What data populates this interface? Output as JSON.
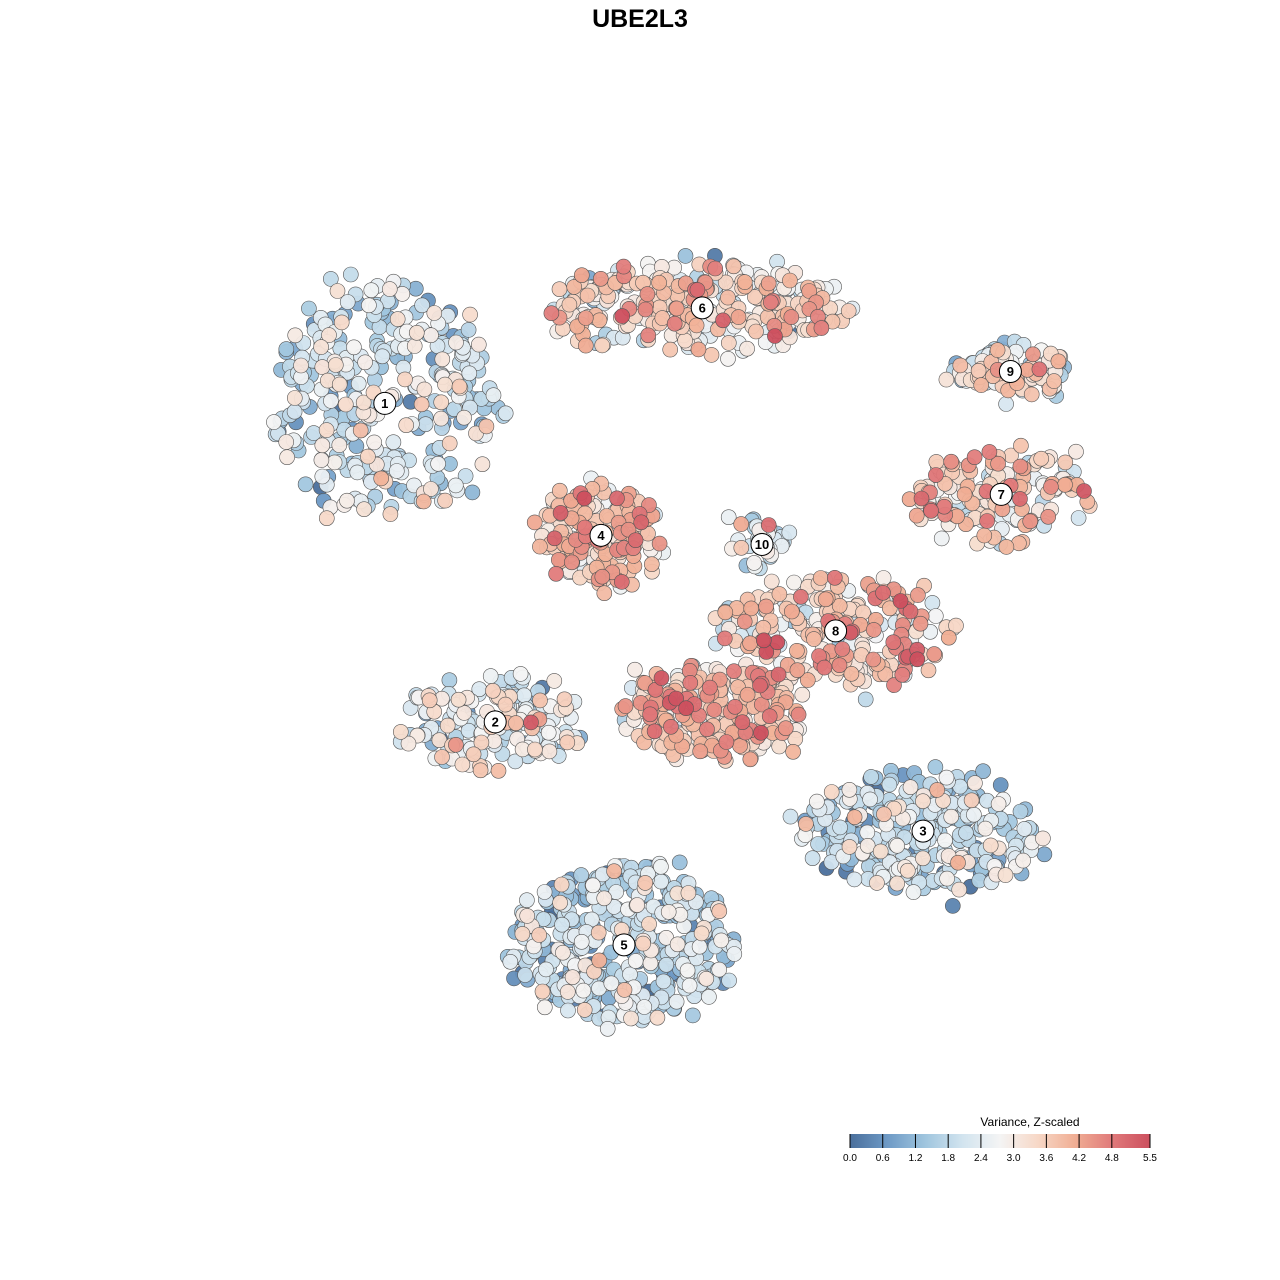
{
  "chart_data": {
    "type": "scatter",
    "title": "UBE2L3",
    "xlabel": "",
    "ylabel": "",
    "grid": false,
    "legend": {
      "title": "Variance, Z-scaled",
      "placement": "bottom-right",
      "range": [
        0.0,
        5.5
      ],
      "ticks": [
        "0.0",
        "0.6",
        "1.2",
        "1.8",
        "2.4",
        "3.0",
        "3.6",
        "4.2",
        "4.8",
        "5.5"
      ],
      "colors": [
        "#4a6f9c",
        "#6e9ac6",
        "#9fc5de",
        "#d2e4ef",
        "#f4f4f4",
        "#f7d8c7",
        "#f0ae94",
        "#e0797a",
        "#cc4f5e"
      ]
    },
    "clusters": [
      {
        "id": "1",
        "label_x": -0.62,
        "label_y": 0.52,
        "spread_x": 0.24,
        "spread_y": 0.26,
        "mean": 2.0,
        "n": 340
      },
      {
        "id": "2",
        "label_x": -0.38,
        "label_y": -0.18,
        "spread_x": 0.19,
        "spread_y": 0.1,
        "mean": 2.4,
        "n": 170
      },
      {
        "id": "3",
        "label_x": 0.55,
        "label_y": -0.42,
        "spread_x": 0.26,
        "spread_y": 0.13,
        "mean": 1.9,
        "n": 300
      },
      {
        "id": "4",
        "label_x": -0.15,
        "label_y": 0.23,
        "spread_x": 0.12,
        "spread_y": 0.11,
        "mean": 3.6,
        "n": 200
      },
      {
        "id": "5",
        "label_x": -0.1,
        "label_y": -0.67,
        "spread_x": 0.24,
        "spread_y": 0.17,
        "mean": 1.8,
        "n": 420
      },
      {
        "id": "6",
        "label_x": 0.07,
        "label_y": 0.73,
        "spread_x": 0.34,
        "spread_y": 0.09,
        "mean": 3.1,
        "n": 330
      },
      {
        "id": "7",
        "label_x": 0.72,
        "label_y": 0.32,
        "spread_x": 0.2,
        "spread_y": 0.1,
        "mean": 3.3,
        "n": 160
      },
      {
        "id": "8",
        "label_x": 0.36,
        "label_y": 0.02,
        "spread_x": 0.26,
        "spread_y": 0.12,
        "mean": 3.5,
        "n": 240
      },
      {
        "id": "9",
        "label_x": 0.74,
        "label_y": 0.59,
        "spread_x": 0.13,
        "spread_y": 0.06,
        "mean": 2.7,
        "n": 110
      },
      {
        "id": "10",
        "label_x": 0.2,
        "label_y": 0.21,
        "spread_x": 0.05,
        "spread_y": 0.05,
        "mean": 2.2,
        "n": 40
      },
      {
        "id": "",
        "label_x": 0.1,
        "label_y": -0.16,
        "spread_x": 0.2,
        "spread_y": 0.1,
        "mean": 3.6,
        "n": 260
      }
    ]
  }
}
